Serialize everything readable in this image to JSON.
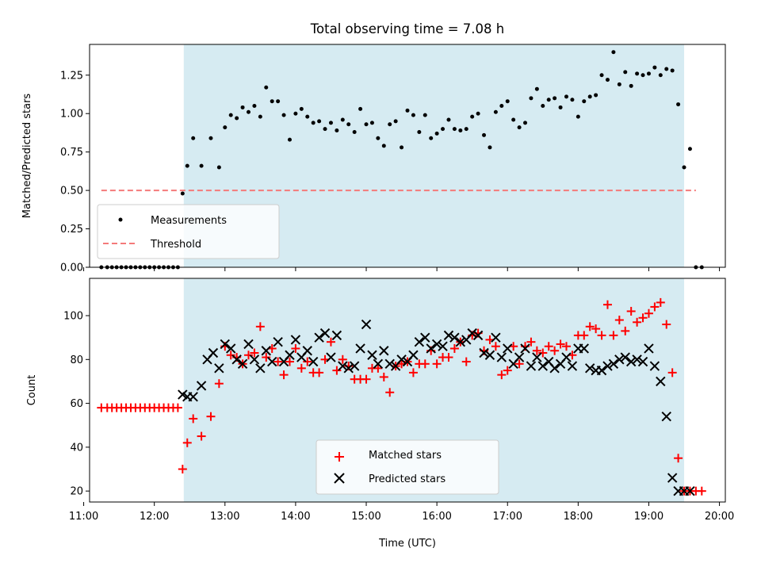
{
  "figure": {
    "title": "Total observing time = 7.08 h",
    "xlabel": "Time (UTC)"
  },
  "chart_data": [
    {
      "type": "scatter",
      "ylabel": "Matched/Predicted stars",
      "xlim": [
        "11:05",
        "20:05"
      ],
      "ylim": [
        0,
        1.45
      ],
      "yticks": [
        0.0,
        0.25,
        0.5,
        0.75,
        1.0,
        1.25
      ],
      "ytick_labels": [
        "0.00",
        "0.25",
        "0.50",
        "0.75",
        "1.00",
        "1.25"
      ],
      "observing_window": [
        "12:25",
        "19:30"
      ],
      "legend": {
        "placement": "lower-left",
        "entries": [
          "Measurements",
          "Threshold"
        ]
      },
      "series": [
        {
          "name": "Measurements",
          "marker": "dot",
          "color": "#000000",
          "x": [
            "11:15",
            "11:20",
            "11:24",
            "11:28",
            "11:32",
            "11:36",
            "11:40",
            "11:44",
            "11:48",
            "11:52",
            "11:56",
            "12:00",
            "12:04",
            "12:08",
            "12:12",
            "12:16",
            "12:20",
            "12:24",
            "12:28",
            "12:33",
            "12:40",
            "12:48",
            "12:55",
            "13:00",
            "13:05",
            "13:10",
            "13:15",
            "13:20",
            "13:25",
            "13:30",
            "13:35",
            "13:40",
            "13:45",
            "13:50",
            "13:55",
            "14:00",
            "14:05",
            "14:10",
            "14:15",
            "14:20",
            "14:25",
            "14:30",
            "14:35",
            "14:40",
            "14:45",
            "14:50",
            "14:55",
            "15:00",
            "15:05",
            "15:10",
            "15:15",
            "15:20",
            "15:25",
            "15:30",
            "15:35",
            "15:40",
            "15:45",
            "15:50",
            "15:55",
            "16:00",
            "16:05",
            "16:10",
            "16:15",
            "16:20",
            "16:25",
            "16:30",
            "16:35",
            "16:40",
            "16:45",
            "16:50",
            "16:55",
            "17:00",
            "17:05",
            "17:10",
            "17:15",
            "17:20",
            "17:25",
            "17:30",
            "17:35",
            "17:40",
            "17:45",
            "17:50",
            "17:55",
            "18:00",
            "18:05",
            "18:10",
            "18:15",
            "18:20",
            "18:25",
            "18:30",
            "18:35",
            "18:40",
            "18:45",
            "18:50",
            "18:55",
            "19:00",
            "19:05",
            "19:10",
            "19:15",
            "19:20",
            "19:25",
            "19:30",
            "19:35",
            "19:40",
            "19:45"
          ],
          "y": [
            0,
            0,
            0,
            0,
            0,
            0,
            0,
            0,
            0,
            0,
            0,
            0,
            0,
            0,
            0,
            0,
            0,
            0.48,
            0.66,
            0.84,
            0.66,
            0.84,
            0.65,
            0.91,
            0.99,
            0.97,
            1.04,
            1.01,
            1.05,
            0.98,
            1.17,
            1.08,
            1.08,
            0.99,
            0.83,
            1.0,
            1.03,
            0.98,
            0.94,
            0.95,
            0.9,
            0.94,
            0.89,
            0.96,
            0.93,
            0.88,
            1.03,
            0.93,
            0.94,
            0.84,
            0.79,
            0.93,
            0.95,
            0.78,
            1.02,
            0.99,
            0.88,
            0.99,
            0.84,
            0.87,
            0.9,
            0.96,
            0.9,
            0.89,
            0.9,
            0.98,
            1.0,
            0.86,
            0.78,
            1.01,
            1.05,
            1.08,
            0.96,
            0.91,
            0.94,
            1.1,
            1.16,
            1.05,
            1.09,
            1.1,
            1.04,
            1.11,
            1.09,
            0.98,
            1.08,
            1.11,
            1.12,
            1.25,
            1.22,
            1.4,
            1.19,
            1.27,
            1.18,
            1.26,
            1.25,
            1.26,
            1.3,
            1.25,
            1.29,
            1.28,
            1.06,
            0.65,
            0.77,
            0,
            0
          ]
        },
        {
          "name": "Threshold",
          "style": "dashed-line",
          "color": "#f47a7a",
          "x": [
            "11:15",
            "19:40"
          ],
          "y": [
            0.5,
            0.5
          ]
        }
      ]
    },
    {
      "type": "scatter",
      "ylabel": "Count",
      "xlim": [
        "11:05",
        "20:05"
      ],
      "ylim": [
        15,
        117
      ],
      "yticks": [
        20,
        40,
        60,
        80,
        100
      ],
      "ytick_labels": [
        "20",
        "40",
        "60",
        "80",
        "100"
      ],
      "xticks": [
        "11:00",
        "12:00",
        "13:00",
        "14:00",
        "15:00",
        "16:00",
        "17:00",
        "18:00",
        "19:00",
        "20:00"
      ],
      "xtick_labels": [
        "11:00",
        "12:00",
        "13:00",
        "14:00",
        "15:00",
        "16:00",
        "17:00",
        "18:00",
        "19:00",
        "20:00"
      ],
      "observing_window": [
        "12:25",
        "19:30"
      ],
      "legend": {
        "placement": "lower-center",
        "entries": [
          "Matched stars",
          "Predicted stars"
        ]
      },
      "series": [
        {
          "name": "Matched stars",
          "marker": "plus",
          "color": "#ff0000",
          "x": [
            "11:15",
            "11:20",
            "11:24",
            "11:28",
            "11:32",
            "11:36",
            "11:40",
            "11:44",
            "11:48",
            "11:52",
            "11:56",
            "12:00",
            "12:04",
            "12:08",
            "12:12",
            "12:16",
            "12:20",
            "12:24",
            "12:28",
            "12:33",
            "12:40",
            "12:48",
            "12:55",
            "13:00",
            "13:05",
            "13:10",
            "13:15",
            "13:20",
            "13:25",
            "13:30",
            "13:35",
            "13:40",
            "13:45",
            "13:50",
            "13:55",
            "14:00",
            "14:05",
            "14:10",
            "14:15",
            "14:20",
            "14:25",
            "14:30",
            "14:35",
            "14:40",
            "14:45",
            "14:50",
            "14:55",
            "15:00",
            "15:05",
            "15:10",
            "15:15",
            "15:20",
            "15:25",
            "15:30",
            "15:35",
            "15:40",
            "15:45",
            "15:50",
            "15:55",
            "16:00",
            "16:05",
            "16:10",
            "16:15",
            "16:20",
            "16:25",
            "16:30",
            "16:35",
            "16:40",
            "16:45",
            "16:50",
            "16:55",
            "17:00",
            "17:05",
            "17:10",
            "17:15",
            "17:20",
            "17:25",
            "17:30",
            "17:35",
            "17:40",
            "17:45",
            "17:50",
            "17:55",
            "18:00",
            "18:05",
            "18:10",
            "18:15",
            "18:20",
            "18:25",
            "18:30",
            "18:35",
            "18:40",
            "18:45",
            "18:50",
            "18:55",
            "19:00",
            "19:05",
            "19:10",
            "19:15",
            "19:20",
            "19:25",
            "19:30",
            "19:35",
            "19:40",
            "19:45"
          ],
          "y": [
            58,
            58,
            58,
            58,
            58,
            58,
            58,
            58,
            58,
            58,
            58,
            58,
            58,
            58,
            58,
            58,
            58,
            30,
            42,
            53,
            45,
            54,
            69,
            86,
            82,
            81,
            78,
            82,
            83,
            95,
            81,
            85,
            79,
            73,
            79,
            85,
            76,
            79,
            74,
            74,
            80,
            88,
            75,
            80,
            77,
            71,
            71,
            71,
            76,
            76,
            72,
            65,
            77,
            78,
            79,
            74,
            78,
            78,
            84,
            78,
            81,
            81,
            85,
            88,
            79,
            91,
            92,
            84,
            89,
            86,
            73,
            75,
            86,
            78,
            86,
            88,
            84,
            83,
            86,
            84,
            87,
            86,
            82,
            91,
            91,
            95,
            94,
            91,
            105,
            91,
            98,
            93,
            102,
            97,
            99,
            101,
            104,
            106,
            96,
            74,
            35,
            20,
            20,
            20,
            20
          ]
        },
        {
          "name": "Predicted stars",
          "marker": "x",
          "color": "#000000",
          "x": [
            "12:24",
            "12:28",
            "12:33",
            "12:40",
            "12:45",
            "12:50",
            "12:55",
            "13:00",
            "13:05",
            "13:10",
            "13:15",
            "13:20",
            "13:25",
            "13:30",
            "13:35",
            "13:40",
            "13:45",
            "13:50",
            "13:55",
            "14:00",
            "14:05",
            "14:10",
            "14:15",
            "14:20",
            "14:25",
            "14:30",
            "14:35",
            "14:40",
            "14:45",
            "14:50",
            "14:55",
            "15:00",
            "15:05",
            "15:10",
            "15:15",
            "15:20",
            "15:25",
            "15:30",
            "15:35",
            "15:40",
            "15:45",
            "15:50",
            "15:55",
            "16:00",
            "16:05",
            "16:10",
            "16:15",
            "16:20",
            "16:25",
            "16:30",
            "16:35",
            "16:40",
            "16:45",
            "16:50",
            "16:55",
            "17:00",
            "17:05",
            "17:10",
            "17:15",
            "17:20",
            "17:25",
            "17:30",
            "17:35",
            "17:40",
            "17:45",
            "17:50",
            "17:55",
            "18:00",
            "18:05",
            "18:10",
            "18:15",
            "18:20",
            "18:25",
            "18:30",
            "18:35",
            "18:40",
            "18:45",
            "18:50",
            "18:55",
            "19:00",
            "19:05",
            "19:10",
            "19:15",
            "19:20",
            "19:25",
            "19:30",
            "19:35"
          ],
          "y": [
            64,
            63,
            63,
            68,
            80,
            83,
            76,
            87,
            85,
            80,
            78,
            87,
            80,
            76,
            84,
            79,
            88,
            79,
            82,
            89,
            81,
            84,
            79,
            90,
            92,
            81,
            91,
            77,
            76,
            77,
            85,
            96,
            82,
            78,
            84,
            78,
            77,
            80,
            79,
            82,
            88,
            90,
            85,
            87,
            86,
            91,
            90,
            88,
            89,
            92,
            91,
            83,
            82,
            90,
            81,
            85,
            78,
            81,
            85,
            77,
            81,
            77,
            79,
            76,
            78,
            81,
            77,
            85,
            85,
            76,
            75,
            75,
            77,
            78,
            80,
            81,
            79,
            80,
            79,
            85,
            77,
            70,
            54,
            26,
            20,
            20,
            20
          ]
        }
      ]
    }
  ]
}
